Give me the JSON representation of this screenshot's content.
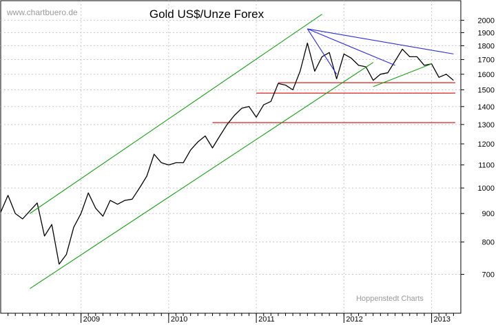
{
  "chart_data": {
    "type": "line",
    "title": "Gold US$/Unze Forex",
    "watermark_top": "www.chartbuero.de",
    "watermark_bottom": "Hoppenstedt Charts",
    "y_scale": "log",
    "ylim": [
      640,
      2060
    ],
    "y_ticks": [
      700,
      800,
      900,
      1000,
      1100,
      1200,
      1300,
      1400,
      1500,
      1600,
      1700,
      1800,
      1900,
      2000
    ],
    "x_ticks": [
      {
        "label": "2009",
        "date": "2009-01"
      },
      {
        "label": "2010",
        "date": "2010-01"
      },
      {
        "label": "2011",
        "date": "2011-01"
      },
      {
        "label": "2012",
        "date": "2012-01"
      },
      {
        "label": "2013",
        "date": "2013-01"
      }
    ],
    "xlim": [
      "2008-02",
      "2013-05"
    ],
    "grid": true,
    "price_series": {
      "name": "",
      "color": "#000000",
      "points": [
        [
          "2008-02",
          905
        ],
        [
          "2008-03",
          970
        ],
        [
          "2008-04",
          900
        ],
        [
          "2008-05",
          880
        ],
        [
          "2008-06",
          910
        ],
        [
          "2008-07",
          940
        ],
        [
          "2008-08",
          820
        ],
        [
          "2008-09",
          860
        ],
        [
          "2008-10",
          730
        ],
        [
          "2008-11",
          760
        ],
        [
          "2008-12",
          850
        ],
        [
          "2009-01",
          900
        ],
        [
          "2009-02",
          980
        ],
        [
          "2009-03",
          920
        ],
        [
          "2009-04",
          890
        ],
        [
          "2009-05",
          950
        ],
        [
          "2009-06",
          935
        ],
        [
          "2009-07",
          950
        ],
        [
          "2009-08",
          955
        ],
        [
          "2009-09",
          1000
        ],
        [
          "2009-10",
          1050
        ],
        [
          "2009-11",
          1150
        ],
        [
          "2009-12",
          1110
        ],
        [
          "2010-01",
          1100
        ],
        [
          "2010-02",
          1110
        ],
        [
          "2010-03",
          1110
        ],
        [
          "2010-04",
          1170
        ],
        [
          "2010-05",
          1210
        ],
        [
          "2010-06",
          1240
        ],
        [
          "2010-07",
          1180
        ],
        [
          "2010-08",
          1240
        ],
        [
          "2010-09",
          1300
        ],
        [
          "2010-10",
          1350
        ],
        [
          "2010-11",
          1390
        ],
        [
          "2010-12",
          1400
        ],
        [
          "2011-01",
          1340
        ],
        [
          "2011-02",
          1410
        ],
        [
          "2011-03",
          1430
        ],
        [
          "2011-04",
          1540
        ],
        [
          "2011-05",
          1530
        ],
        [
          "2011-06",
          1500
        ],
        [
          "2011-07",
          1620
        ],
        [
          "2011-08",
          1820
        ],
        [
          "2011-09",
          1620
        ],
        [
          "2011-10",
          1720
        ],
        [
          "2011-11",
          1750
        ],
        [
          "2011-12",
          1570
        ],
        [
          "2012-01",
          1740
        ],
        [
          "2012-02",
          1710
        ],
        [
          "2012-03",
          1660
        ],
        [
          "2012-04",
          1650
        ],
        [
          "2012-05",
          1560
        ],
        [
          "2012-06",
          1600
        ],
        [
          "2012-07",
          1610
        ],
        [
          "2012-08",
          1690
        ],
        [
          "2012-09",
          1775
        ],
        [
          "2012-10",
          1720
        ],
        [
          "2012-11",
          1720
        ],
        [
          "2012-12",
          1660
        ],
        [
          "2013-01",
          1670
        ],
        [
          "2013-02",
          1580
        ],
        [
          "2013-03",
          1600
        ],
        [
          "2013-04",
          1560
        ]
      ]
    },
    "trend_lines": [
      {
        "kind": "channel-upper",
        "color": "#1a9a1a",
        "from": [
          "2008-06",
          900
        ],
        "to": [
          "2011-10",
          2050
        ]
      },
      {
        "kind": "channel-lower",
        "color": "#1a9a1a",
        "from": [
          "2008-06",
          660
        ],
        "to": [
          "2012-05",
          1680
        ]
      },
      {
        "kind": "support",
        "color": "#1a9a1a",
        "from": [
          "2012-05",
          1520
        ],
        "to": [
          "2013-01",
          1670
        ]
      },
      {
        "kind": "resistance",
        "color": "#2b2bd6",
        "from": [
          "2011-08",
          1930
        ],
        "to": [
          "2013-04",
          1740
        ]
      },
      {
        "kind": "resistance",
        "color": "#2b2bd6",
        "from": [
          "2011-08",
          1930
        ],
        "to": [
          "2012-08",
          1660
        ]
      },
      {
        "kind": "resistance",
        "color": "#2b2bd6",
        "from": [
          "2011-08",
          1930
        ],
        "to": [
          "2011-12",
          1600
        ]
      }
    ],
    "horizontal_lines": [
      {
        "value": 1545,
        "color": "#d42020",
        "from": "2011-04"
      },
      {
        "value": 1480,
        "color": "#d42020",
        "from": "2011-01"
      },
      {
        "value": 1310,
        "color": "#d42020",
        "from": "2010-07"
      }
    ]
  }
}
